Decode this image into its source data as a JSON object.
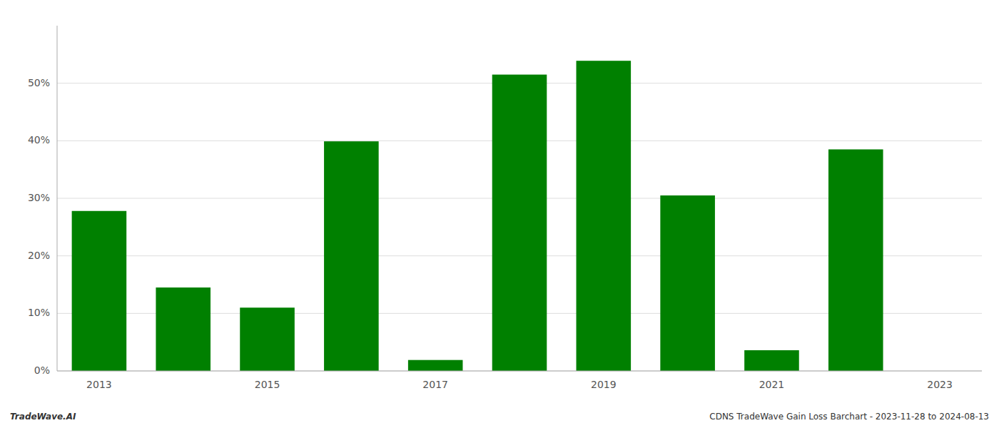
{
  "chart_data": {
    "type": "bar",
    "categories": [
      "2013",
      null,
      "2015",
      null,
      "2017",
      null,
      "2019",
      null,
      "2021",
      null,
      "2023"
    ],
    "values": [
      0.278,
      0.145,
      0.11,
      0.399,
      0.019,
      0.515,
      0.539,
      0.305,
      0.036,
      0.385,
      0.0
    ],
    "color": "#008000",
    "ylim": [
      0,
      0.6
    ],
    "yticks": [
      {
        "value": 0.0,
        "label": "0%"
      },
      {
        "value": 0.1,
        "label": "10%"
      },
      {
        "value": 0.2,
        "label": "20%"
      },
      {
        "value": 0.3,
        "label": "30%"
      },
      {
        "value": 0.4,
        "label": "40%"
      },
      {
        "value": 0.5,
        "label": "50%"
      }
    ],
    "grid": true,
    "annotations": [
      "TradeWave.AI",
      "CDNS TradeWave Gain Loss Barchart - 2023-11-28 to 2024-08-13"
    ]
  }
}
